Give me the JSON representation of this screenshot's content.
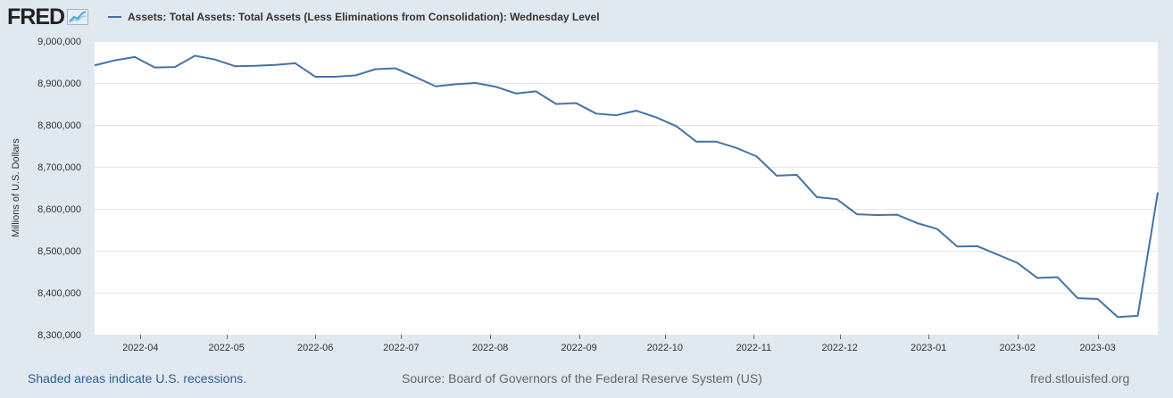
{
  "logo": {
    "text": "FRED"
  },
  "legend": {
    "label": "Assets: Total Assets: Total Assets (Less Eliminations from Consolidation): Wednesday Level"
  },
  "colors": {
    "series": "#4572a7",
    "background": "#e1e9f0",
    "plot": "#ffffff",
    "grid": "#e6e6e6"
  },
  "footer": {
    "recessions": "Shaded areas indicate U.S. recessions.",
    "source": "Source: Board of Governors of the Federal Reserve System (US)",
    "url": "fred.stlouisfed.org"
  },
  "chart_data": {
    "type": "line",
    "title": "Assets: Total Assets: Total Assets (Less Eliminations from Consolidation): Wednesday Level",
    "xlabel": "",
    "ylabel": "Millions of U.S. Dollars",
    "ylim": [
      8300000,
      9000000
    ],
    "ytick_values": [
      8300000,
      8400000,
      8500000,
      8600000,
      8700000,
      8800000,
      8900000,
      9000000
    ],
    "ytick_labels": [
      "8,300,000",
      "8,400,000",
      "8,500,000",
      "8,600,000",
      "8,700,000",
      "8,800,000",
      "8,900,000",
      "9,000,000"
    ],
    "xtick_labels": [
      "2022-04",
      "2022-05",
      "2022-06",
      "2022-07",
      "2022-08",
      "2022-09",
      "2022-10",
      "2022-11",
      "2022-12",
      "2023-01",
      "2023-02",
      "2023-03"
    ],
    "x_first": "2022-03-16",
    "x_step_days": 7,
    "grid": true,
    "legend_position": "top-left",
    "series": [
      {
        "name": "Assets: Total Assets: Total Assets (Less Eliminations from Consolidation): Wednesday Level",
        "values": [
          8942000,
          8954000,
          8962000,
          8937000,
          8938000,
          8965000,
          8956000,
          8940000,
          8941000,
          8943000,
          8947000,
          8915000,
          8915000,
          8918000,
          8933000,
          8935000,
          8914000,
          8892000,
          8897000,
          8900000,
          8891000,
          8875000,
          8880000,
          8850000,
          8852000,
          8827000,
          8823000,
          8834000,
          8818000,
          8797000,
          8760000,
          8760000,
          8745000,
          8725000,
          8679000,
          8681000,
          8628000,
          8623000,
          8587000,
          8585000,
          8586000,
          8566000,
          8552000,
          8510000,
          8511000,
          8491000,
          8471000,
          8435000,
          8437000,
          8387000,
          8385000,
          8342000,
          8345000,
          8639000
        ]
      }
    ]
  }
}
